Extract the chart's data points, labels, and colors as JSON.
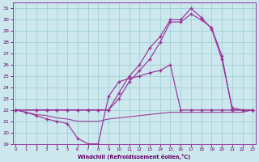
{
  "bg_color": "#cce8ee",
  "grid_color": "#99cccc",
  "line_color": "#993399",
  "xlabel": "Windchill (Refroidissement éolien,°C)",
  "xlim": [
    -0.3,
    23.3
  ],
  "ylim": [
    19,
    31.5
  ],
  "xtick_labels": [
    "0",
    "1",
    "2",
    "3",
    "4",
    "5",
    "6",
    "7",
    "8",
    "9",
    "10",
    "11",
    "12",
    "13",
    "14",
    "15",
    "16",
    "17",
    "18",
    "19",
    "20",
    "21",
    "22",
    "23"
  ],
  "yticks": [
    19,
    20,
    21,
    22,
    23,
    24,
    25,
    26,
    27,
    28,
    29,
    30,
    31
  ],
  "s1x": [
    0,
    1,
    2,
    3,
    4,
    5,
    6,
    7,
    8,
    9,
    10,
    11,
    12,
    13,
    14,
    15,
    16,
    17,
    18,
    19,
    20,
    21,
    22,
    23
  ],
  "s1y": [
    22.0,
    21.8,
    21.5,
    21.2,
    21.0,
    20.8,
    19.5,
    19.0,
    19.0,
    23.2,
    24.5,
    24.8,
    25.0,
    25.3,
    25.5,
    26.0,
    22.0,
    22.0,
    22.0,
    22.0,
    22.0,
    22.0,
    22.0,
    22.0
  ],
  "s2x": [
    0,
    1,
    2,
    3,
    4,
    5,
    6,
    7,
    8,
    9,
    10,
    11,
    12,
    13,
    14,
    15,
    16,
    17,
    18,
    19,
    20,
    21,
    22,
    23
  ],
  "s2y": [
    22.0,
    21.8,
    21.6,
    21.5,
    21.3,
    21.2,
    21.0,
    21.0,
    21.0,
    21.2,
    21.3,
    21.4,
    21.5,
    21.6,
    21.7,
    21.8,
    21.8,
    21.8,
    21.8,
    21.8,
    21.8,
    21.8,
    21.8,
    22.0
  ],
  "s3x": [
    0,
    2,
    3,
    4,
    5,
    6,
    7,
    8,
    9,
    10,
    11,
    12,
    13,
    14,
    15,
    16,
    17,
    18,
    19,
    20,
    21,
    22,
    23
  ],
  "s3y": [
    22.0,
    22.0,
    22.0,
    22.0,
    22.0,
    22.0,
    22.0,
    22.0,
    22.0,
    23.5,
    25.0,
    26.0,
    27.5,
    28.5,
    30.0,
    30.0,
    31.0,
    30.2,
    29.2,
    26.5,
    22.2,
    22.0,
    22.0
  ],
  "s4x": [
    0,
    2,
    3,
    4,
    5,
    6,
    7,
    8,
    9,
    10,
    11,
    12,
    13,
    14,
    15,
    16,
    17,
    18,
    19,
    20,
    21,
    22,
    23
  ],
  "s4y": [
    22.0,
    22.0,
    22.0,
    22.0,
    22.0,
    22.0,
    22.0,
    22.0,
    22.0,
    23.0,
    24.5,
    25.5,
    26.5,
    28.0,
    29.8,
    29.8,
    30.5,
    30.0,
    29.3,
    26.8,
    22.0,
    22.0,
    22.0
  ]
}
